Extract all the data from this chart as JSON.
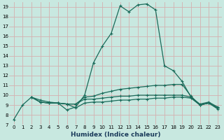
{
  "xlabel": "Humidex (Indice chaleur)",
  "background_color": "#c8e8e0",
  "grid_color": "#d4b0b0",
  "line_color": "#1a6b5a",
  "xlim": [
    -0.5,
    23.5
  ],
  "ylim": [
    7,
    19.5
  ],
  "xticks": [
    0,
    1,
    2,
    3,
    4,
    5,
    6,
    7,
    8,
    9,
    10,
    11,
    12,
    13,
    14,
    15,
    16,
    17,
    18,
    19,
    20,
    21,
    22,
    23
  ],
  "yticks": [
    7,
    8,
    9,
    10,
    11,
    12,
    13,
    14,
    15,
    16,
    17,
    18,
    19
  ],
  "lines": [
    {
      "x": [
        0,
        1,
        2,
        3,
        4,
        5,
        6,
        7,
        8,
        9,
        10,
        11,
        12,
        13,
        14,
        15,
        16,
        17,
        18,
        19,
        20,
        21,
        22,
        23
      ],
      "y": [
        7.5,
        9.0,
        9.8,
        9.5,
        9.3,
        9.2,
        8.5,
        8.8,
        10.0,
        13.3,
        15.0,
        16.3,
        19.1,
        18.5,
        19.2,
        19.3,
        18.7,
        13.0,
        12.5,
        11.4,
        9.8,
        9.1,
        9.3,
        8.8
      ]
    },
    {
      "x": [
        2,
        3,
        4,
        5,
        6,
        7,
        8,
        9,
        10,
        11,
        12,
        13,
        14,
        15,
        16,
        17,
        18,
        19,
        20,
        21,
        22,
        23
      ],
      "y": [
        9.8,
        9.3,
        9.2,
        9.2,
        9.1,
        9.1,
        9.8,
        9.9,
        10.2,
        10.4,
        10.6,
        10.7,
        10.8,
        10.9,
        11.0,
        11.0,
        11.1,
        11.1,
        9.9,
        9.0,
        9.2,
        8.7
      ]
    },
    {
      "x": [
        2,
        3,
        4,
        5,
        6,
        7,
        8,
        9,
        10,
        11,
        12,
        13,
        14,
        15,
        16,
        17,
        18,
        19,
        20,
        21,
        22,
        23
      ],
      "y": [
        9.8,
        9.3,
        9.2,
        9.2,
        9.1,
        9.1,
        9.6,
        9.6,
        9.7,
        9.8,
        9.9,
        9.9,
        10.0,
        10.0,
        10.0,
        10.0,
        10.0,
        10.0,
        9.8,
        9.0,
        9.2,
        8.7
      ]
    },
    {
      "x": [
        2,
        3,
        4,
        5,
        6,
        7,
        8,
        9,
        10,
        11,
        12,
        13,
        14,
        15,
        16,
        17,
        18,
        19,
        20,
        21,
        22,
        23
      ],
      "y": [
        9.8,
        9.3,
        9.2,
        9.2,
        9.1,
        8.7,
        9.2,
        9.3,
        9.3,
        9.4,
        9.5,
        9.5,
        9.6,
        9.6,
        9.7,
        9.7,
        9.8,
        9.8,
        9.7,
        9.0,
        9.2,
        8.6
      ]
    }
  ]
}
